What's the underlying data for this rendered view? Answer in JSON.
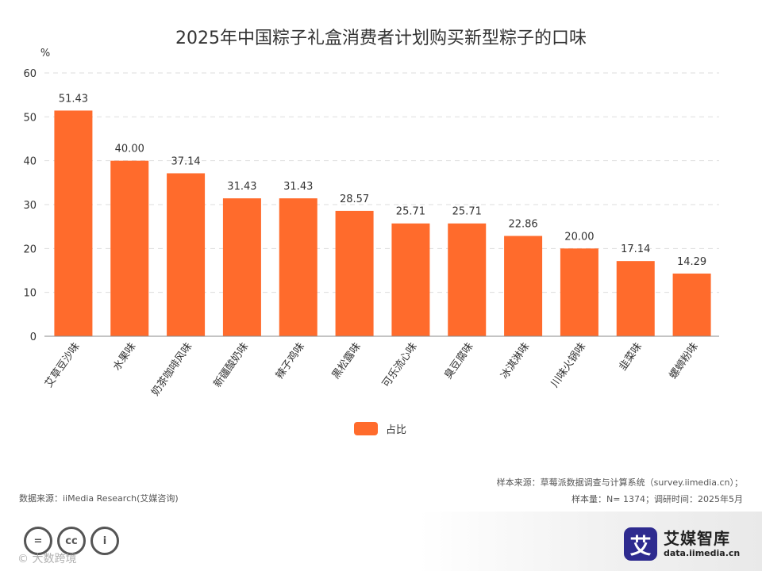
{
  "chart_data": {
    "type": "bar",
    "title": "2025年中国粽子礼盒消费者计划购买新型粽子的口味",
    "ylabel": "%",
    "xlabel": "",
    "ylim": [
      0,
      60
    ],
    "yticks": [
      0,
      10,
      20,
      30,
      40,
      50,
      60
    ],
    "grid": true,
    "legend_position": "bottom-center",
    "categories": [
      "艾草豆沙味",
      "水果味",
      "奶茶咖啡风味",
      "新疆酸奶味",
      "辣子鸡味",
      "黑松露味",
      "可乐流心味",
      "臭豆腐味",
      "冰淇淋味",
      "川味火锅味",
      "韭菜味",
      "螺蛳粉味"
    ],
    "series": [
      {
        "name": "占比",
        "color": "#FF6B2C",
        "values": [
          51.43,
          40.0,
          37.14,
          31.43,
          31.43,
          28.57,
          25.71,
          25.71,
          22.86,
          20.0,
          17.14,
          14.29
        ],
        "labels": [
          "51.43",
          "40.00",
          "37.14",
          "31.43",
          "31.43",
          "28.57",
          "25.71",
          "25.71",
          "22.86",
          "20.00",
          "17.14",
          "14.29"
        ]
      }
    ]
  },
  "footer": {
    "source_left": "数据来源：iiMedia Research(艾媒咨询)",
    "source_right_1": "样本来源：草莓派数据调查与计算系统（survey.iimedia.cn）；",
    "source_right_2": "样本量：N= 1374；调研时间：2025年5月",
    "cc_icons": [
      "equals-icon",
      "cc-icon",
      "person-icon"
    ],
    "cc_glyphs": [
      "=",
      "cc",
      "i"
    ],
    "watermark": "©  大数跨境",
    "brand_mark": "艾",
    "brand_name": "艾媒智库",
    "brand_url": "data.iimedia.cn"
  }
}
